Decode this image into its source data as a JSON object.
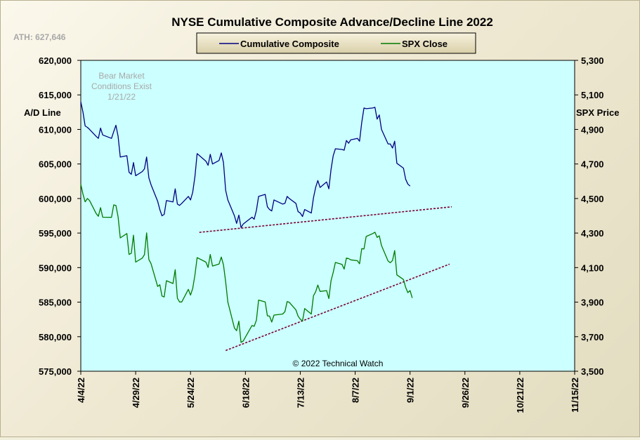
{
  "chart_data": {
    "type": "line",
    "title": "NYSE Cumulative  Composite Advance/Decline Line 2022",
    "ath_label": "ATH: 627,646",
    "watermark": "© 2022 Technical  Watch",
    "note_lines": [
      "Bear Market",
      "Conditions  Exist",
      "1/21/22"
    ],
    "ylabel_left": "A/D Line",
    "ylabel_right": "SPX Price",
    "ylim_left": [
      575000,
      620000
    ],
    "ylim_right": [
      3500,
      5300
    ],
    "yticks_left": [
      "575,000",
      "580,000",
      "585,000",
      "590,000",
      "595,000",
      "600,000",
      "605,000",
      "610,000",
      "615,000",
      "620,000"
    ],
    "yticks_right": [
      "3,500",
      "3,700",
      "3,900",
      "4,100",
      "4,300",
      "4,500",
      "4,700",
      "4,900",
      "5,100",
      "5,300"
    ],
    "xlim": [
      "2022-04-04",
      "2022-11-15"
    ],
    "xticks": [
      "4/4/22",
      "4/29/22",
      "5/24/22",
      "6/18/22",
      "7/13/22",
      "8/7/22",
      "9/1/22",
      "9/26/22",
      "10/21/22",
      "11/15/22"
    ],
    "grid": false,
    "legend_position": "top-center",
    "colors": {
      "plot_bg": "#ccffff",
      "ad_line": "#000080",
      "spx_line": "#007a00",
      "trendline": "#7a0033",
      "title": "#000000",
      "grey_text": "#a8a8a8"
    },
    "series": [
      {
        "name": "Cumulative Composite",
        "axis": "left",
        "points": [
          [
            "2022-04-04",
            614000
          ],
          [
            "2022-04-05",
            612500
          ],
          [
            "2022-04-06",
            610500
          ],
          [
            "2022-04-07",
            610300
          ],
          [
            "2022-04-08",
            610000
          ],
          [
            "2022-04-11",
            609000
          ],
          [
            "2022-04-12",
            608700
          ],
          [
            "2022-04-13",
            610200
          ],
          [
            "2022-04-14",
            609200
          ],
          [
            "2022-04-18",
            608700
          ],
          [
            "2022-04-19",
            609700
          ],
          [
            "2022-04-20",
            610600
          ],
          [
            "2022-04-21",
            609000
          ],
          [
            "2022-04-22",
            606000
          ],
          [
            "2022-04-25",
            606200
          ],
          [
            "2022-04-26",
            603800
          ],
          [
            "2022-04-27",
            603500
          ],
          [
            "2022-04-28",
            605200
          ],
          [
            "2022-04-29",
            603300
          ],
          [
            "2022-05-02",
            603900
          ],
          [
            "2022-05-03",
            604300
          ],
          [
            "2022-05-04",
            606000
          ],
          [
            "2022-05-05",
            603000
          ],
          [
            "2022-05-06",
            602000
          ],
          [
            "2022-05-09",
            599600
          ],
          [
            "2022-05-10",
            598400
          ],
          [
            "2022-05-11",
            597500
          ],
          [
            "2022-05-12",
            597700
          ],
          [
            "2022-05-13",
            599700
          ],
          [
            "2022-05-16",
            599500
          ],
          [
            "2022-05-17",
            601400
          ],
          [
            "2022-05-18",
            599200
          ],
          [
            "2022-05-19",
            599000
          ],
          [
            "2022-05-20",
            599300
          ],
          [
            "2022-05-23",
            600300
          ],
          [
            "2022-05-24",
            599800
          ],
          [
            "2022-05-25",
            600900
          ],
          [
            "2022-05-26",
            603200
          ],
          [
            "2022-05-27",
            606500
          ],
          [
            "2022-05-31",
            605400
          ],
          [
            "2022-06-01",
            604800
          ],
          [
            "2022-06-02",
            606400
          ],
          [
            "2022-06-03",
            605000
          ],
          [
            "2022-06-06",
            605500
          ],
          [
            "2022-06-07",
            606600
          ],
          [
            "2022-06-08",
            605200
          ],
          [
            "2022-06-09",
            601200
          ],
          [
            "2022-06-10",
            599800
          ],
          [
            "2022-06-13",
            597500
          ],
          [
            "2022-06-14",
            596400
          ],
          [
            "2022-06-15",
            597600
          ],
          [
            "2022-06-16",
            595800
          ],
          [
            "2022-06-17",
            596300
          ],
          [
            "2022-06-21",
            597300
          ],
          [
            "2022-06-22",
            597000
          ],
          [
            "2022-06-23",
            598300
          ],
          [
            "2022-06-24",
            600300
          ],
          [
            "2022-06-27",
            600600
          ],
          [
            "2022-06-28",
            598800
          ],
          [
            "2022-06-29",
            598400
          ],
          [
            "2022-06-30",
            598200
          ],
          [
            "2022-07-01",
            599800
          ],
          [
            "2022-07-05",
            599200
          ],
          [
            "2022-07-06",
            599300
          ],
          [
            "2022-07-07",
            600300
          ],
          [
            "2022-07-08",
            600000
          ],
          [
            "2022-07-11",
            599300
          ],
          [
            "2022-07-12",
            598100
          ],
          [
            "2022-07-13",
            597900
          ],
          [
            "2022-07-14",
            597400
          ],
          [
            "2022-07-15",
            598400
          ],
          [
            "2022-07-18",
            597900
          ],
          [
            "2022-07-19",
            600100
          ],
          [
            "2022-07-20",
            601600
          ],
          [
            "2022-07-21",
            602600
          ],
          [
            "2022-07-22",
            601600
          ],
          [
            "2022-07-25",
            602400
          ],
          [
            "2022-07-26",
            601400
          ],
          [
            "2022-07-27",
            604200
          ],
          [
            "2022-07-28",
            606200
          ],
          [
            "2022-07-29",
            607200
          ],
          [
            "2022-08-01",
            607100
          ],
          [
            "2022-08-02",
            607000
          ],
          [
            "2022-08-03",
            608400
          ],
          [
            "2022-08-04",
            608000
          ],
          [
            "2022-08-05",
            608500
          ],
          [
            "2022-08-08",
            608700
          ],
          [
            "2022-08-09",
            608300
          ],
          [
            "2022-08-10",
            611000
          ],
          [
            "2022-08-11",
            613100
          ],
          [
            "2022-08-12",
            613000
          ],
          [
            "2022-08-15",
            613100
          ],
          [
            "2022-08-16",
            613200
          ],
          [
            "2022-08-17",
            611500
          ],
          [
            "2022-08-18",
            612100
          ],
          [
            "2022-08-19",
            610000
          ],
          [
            "2022-08-22",
            607900
          ],
          [
            "2022-08-23",
            607900
          ],
          [
            "2022-08-24",
            607300
          ],
          [
            "2022-08-25",
            608300
          ],
          [
            "2022-08-26",
            605100
          ],
          [
            "2022-08-29",
            604400
          ],
          [
            "2022-08-30",
            602800
          ],
          [
            "2022-08-31",
            602100
          ],
          [
            "2022-09-01",
            601800
          ]
        ]
      },
      {
        "name": "SPX Close",
        "axis": "right",
        "points": [
          [
            "2022-04-04",
            4583
          ],
          [
            "2022-04-05",
            4525
          ],
          [
            "2022-04-06",
            4481
          ],
          [
            "2022-04-07",
            4500
          ],
          [
            "2022-04-08",
            4488
          ],
          [
            "2022-04-11",
            4413
          ],
          [
            "2022-04-12",
            4397
          ],
          [
            "2022-04-13",
            4447
          ],
          [
            "2022-04-14",
            4392
          ],
          [
            "2022-04-18",
            4391
          ],
          [
            "2022-04-19",
            4463
          ],
          [
            "2022-04-20",
            4460
          ],
          [
            "2022-04-21",
            4394
          ],
          [
            "2022-04-22",
            4272
          ],
          [
            "2022-04-25",
            4297
          ],
          [
            "2022-04-26",
            4176
          ],
          [
            "2022-04-27",
            4183
          ],
          [
            "2022-04-28",
            4288
          ],
          [
            "2022-04-29",
            4132
          ],
          [
            "2022-05-02",
            4155
          ],
          [
            "2022-05-03",
            4175
          ],
          [
            "2022-05-04",
            4301
          ],
          [
            "2022-05-05",
            4147
          ],
          [
            "2022-05-06",
            4123
          ],
          [
            "2022-05-09",
            3991
          ],
          [
            "2022-05-10",
            4001
          ],
          [
            "2022-05-11",
            3935
          ],
          [
            "2022-05-12",
            3930
          ],
          [
            "2022-05-13",
            4024
          ],
          [
            "2022-05-16",
            4008
          ],
          [
            "2022-05-17",
            4088
          ],
          [
            "2022-05-18",
            3923
          ],
          [
            "2022-05-19",
            3901
          ],
          [
            "2022-05-20",
            3901
          ],
          [
            "2022-05-23",
            3974
          ],
          [
            "2022-05-24",
            3941
          ],
          [
            "2022-05-25",
            3979
          ],
          [
            "2022-05-26",
            4058
          ],
          [
            "2022-05-27",
            4158
          ],
          [
            "2022-05-31",
            4132
          ],
          [
            "2022-06-01",
            4101
          ],
          [
            "2022-06-02",
            4176
          ],
          [
            "2022-06-03",
            4109
          ],
          [
            "2022-06-06",
            4121
          ],
          [
            "2022-06-07",
            4161
          ],
          [
            "2022-06-08",
            4116
          ],
          [
            "2022-06-09",
            4018
          ],
          [
            "2022-06-10",
            3901
          ],
          [
            "2022-06-13",
            3750
          ],
          [
            "2022-06-14",
            3735
          ],
          [
            "2022-06-15",
            3790
          ],
          [
            "2022-06-16",
            3667
          ],
          [
            "2022-06-17",
            3675
          ],
          [
            "2022-06-21",
            3765
          ],
          [
            "2022-06-22",
            3760
          ],
          [
            "2022-06-23",
            3796
          ],
          [
            "2022-06-24",
            3912
          ],
          [
            "2022-06-27",
            3901
          ],
          [
            "2022-06-28",
            3821
          ],
          [
            "2022-06-29",
            3819
          ],
          [
            "2022-06-30",
            3785
          ],
          [
            "2022-07-01",
            3825
          ],
          [
            "2022-07-05",
            3831
          ],
          [
            "2022-07-06",
            3845
          ],
          [
            "2022-07-07",
            3903
          ],
          [
            "2022-07-08",
            3899
          ],
          [
            "2022-07-11",
            3855
          ],
          [
            "2022-07-12",
            3819
          ],
          [
            "2022-07-13",
            3802
          ],
          [
            "2022-07-14",
            3791
          ],
          [
            "2022-07-15",
            3863
          ],
          [
            "2022-07-18",
            3831
          ],
          [
            "2022-07-19",
            3937
          ],
          [
            "2022-07-20",
            3960
          ],
          [
            "2022-07-21",
            3999
          ],
          [
            "2022-07-22",
            3962
          ],
          [
            "2022-07-25",
            3967
          ],
          [
            "2022-07-26",
            3921
          ],
          [
            "2022-07-27",
            4024
          ],
          [
            "2022-07-28",
            4072
          ],
          [
            "2022-07-29",
            4130
          ],
          [
            "2022-08-01",
            4119
          ],
          [
            "2022-08-02",
            4091
          ],
          [
            "2022-08-03",
            4155
          ],
          [
            "2022-08-04",
            4152
          ],
          [
            "2022-08-05",
            4145
          ],
          [
            "2022-08-08",
            4140
          ],
          [
            "2022-08-09",
            4122
          ],
          [
            "2022-08-10",
            4210
          ],
          [
            "2022-08-11",
            4208
          ],
          [
            "2022-08-12",
            4280
          ],
          [
            "2022-08-15",
            4297
          ],
          [
            "2022-08-16",
            4305
          ],
          [
            "2022-08-17",
            4275
          ],
          [
            "2022-08-18",
            4284
          ],
          [
            "2022-08-19",
            4228
          ],
          [
            "2022-08-22",
            4138
          ],
          [
            "2022-08-23",
            4128
          ],
          [
            "2022-08-24",
            4141
          ],
          [
            "2022-08-25",
            4199
          ],
          [
            "2022-08-26",
            4058
          ],
          [
            "2022-08-29",
            4031
          ],
          [
            "2022-08-30",
            3986
          ],
          [
            "2022-08-31",
            3955
          ],
          [
            "2022-09-01",
            3967
          ],
          [
            "2022-09-02",
            3924
          ]
        ]
      }
    ],
    "trendlines": [
      {
        "axis": "left",
        "from": [
          "2022-05-28",
          595100
        ],
        "to": [
          "2022-09-20",
          598800
        ]
      },
      {
        "axis": "left",
        "from": [
          "2022-06-09",
          578000
        ],
        "to": [
          "2022-09-19",
          590500
        ]
      }
    ]
  }
}
